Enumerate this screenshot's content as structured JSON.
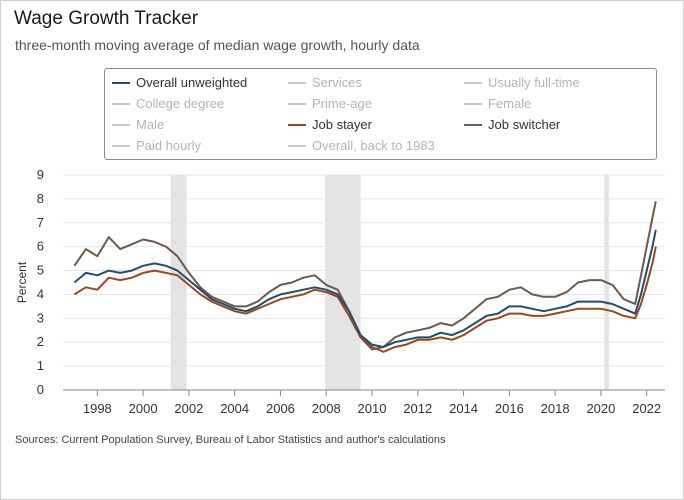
{
  "title": "Wage Growth Tracker",
  "subtitle": "three-month moving average of median wage growth, hourly data",
  "source": "Sources: Current Population Survey, Bureau of Labor Statistics and author's calculations",
  "legend": [
    {
      "label": "Overall unweighted",
      "color": "#1f4e6e",
      "active": true
    },
    {
      "label": "Services",
      "color": "#c8c8c8",
      "active": false
    },
    {
      "label": "Usually full-time",
      "color": "#c8c8c8",
      "active": false
    },
    {
      "label": "College degree",
      "color": "#c8c8c8",
      "active": false
    },
    {
      "label": "Prime-age",
      "color": "#c8c8c8",
      "active": false
    },
    {
      "label": "Female",
      "color": "#c8c8c8",
      "active": false
    },
    {
      "label": "Male",
      "color": "#c8c8c8",
      "active": false
    },
    {
      "label": "Job stayer",
      "color": "#a0461a",
      "active": true
    },
    {
      "label": "Job switcher",
      "color": "#6b5a4e",
      "active": true
    },
    {
      "label": "Paid hourly",
      "color": "#c8c8c8",
      "active": false
    },
    {
      "label": "Overall, back to 1983",
      "color": "#c8c8c8",
      "active": false
    }
  ],
  "chart_data": {
    "type": "line",
    "ylabel": "Percent",
    "xlabel": "",
    "ylim": [
      0,
      9
    ],
    "xlim": [
      1996.5,
      2022.8
    ],
    "yticks": [
      "0",
      "1",
      "2",
      "3",
      "4",
      "5",
      "6",
      "7",
      "8",
      "9"
    ],
    "xticks": [
      "1998",
      "2000",
      "2002",
      "2004",
      "2006",
      "2008",
      "2010",
      "2012",
      "2014",
      "2016",
      "2018",
      "2020",
      "2022"
    ],
    "grid": true,
    "recessions": [
      [
        2001.2,
        2001.9
      ],
      [
        2007.95,
        2009.5
      ],
      [
        2020.15,
        2020.35
      ]
    ],
    "x": [
      1997.0,
      1997.5,
      1998.0,
      1998.5,
      1999.0,
      1999.5,
      2000.0,
      2000.5,
      2001.0,
      2001.5,
      2002.0,
      2002.5,
      2003.0,
      2003.5,
      2004.0,
      2004.5,
      2005.0,
      2005.5,
      2006.0,
      2006.5,
      2007.0,
      2007.5,
      2008.0,
      2008.5,
      2009.0,
      2009.5,
      2010.0,
      2010.5,
      2011.0,
      2011.5,
      2012.0,
      2012.5,
      2013.0,
      2013.5,
      2014.0,
      2014.5,
      2015.0,
      2015.5,
      2016.0,
      2016.5,
      2017.0,
      2017.5,
      2018.0,
      2018.5,
      2019.0,
      2019.5,
      2020.0,
      2020.5,
      2021.0,
      2021.5,
      2021.75,
      2022.0,
      2022.25,
      2022.4
    ],
    "series": [
      {
        "name": "Overall unweighted",
        "color": "#1f4e6e",
        "values": [
          4.5,
          4.9,
          4.8,
          5.0,
          4.9,
          5.0,
          5.2,
          5.3,
          5.2,
          5.0,
          4.6,
          4.2,
          3.8,
          3.6,
          3.4,
          3.3,
          3.5,
          3.8,
          4.0,
          4.1,
          4.2,
          4.3,
          4.2,
          4.0,
          3.3,
          2.3,
          1.9,
          1.8,
          2.0,
          2.1,
          2.2,
          2.2,
          2.4,
          2.3,
          2.5,
          2.8,
          3.1,
          3.2,
          3.5,
          3.5,
          3.4,
          3.3,
          3.4,
          3.5,
          3.7,
          3.7,
          3.7,
          3.6,
          3.4,
          3.2,
          4.0,
          5.0,
          6.0,
          6.7
        ]
      },
      {
        "name": "Job stayer",
        "color": "#a0461a",
        "values": [
          4.0,
          4.3,
          4.2,
          4.7,
          4.6,
          4.7,
          4.9,
          5.0,
          4.9,
          4.8,
          4.4,
          4.0,
          3.7,
          3.5,
          3.3,
          3.2,
          3.4,
          3.6,
          3.8,
          3.9,
          4.0,
          4.2,
          4.1,
          3.9,
          3.1,
          2.2,
          1.8,
          1.6,
          1.8,
          1.9,
          2.1,
          2.1,
          2.2,
          2.1,
          2.3,
          2.6,
          2.9,
          3.0,
          3.2,
          3.2,
          3.1,
          3.1,
          3.2,
          3.3,
          3.4,
          3.4,
          3.4,
          3.3,
          3.1,
          3.0,
          3.6,
          4.4,
          5.3,
          6.0
        ]
      },
      {
        "name": "Job switcher",
        "color": "#6b5a4e",
        "values": [
          5.2,
          5.9,
          5.6,
          6.4,
          5.9,
          6.1,
          6.3,
          6.2,
          6.0,
          5.6,
          4.9,
          4.3,
          3.9,
          3.7,
          3.5,
          3.5,
          3.7,
          4.1,
          4.4,
          4.5,
          4.7,
          4.8,
          4.4,
          4.2,
          3.3,
          2.2,
          1.7,
          1.8,
          2.2,
          2.4,
          2.5,
          2.6,
          2.8,
          2.7,
          3.0,
          3.4,
          3.8,
          3.9,
          4.2,
          4.3,
          4.0,
          3.9,
          3.9,
          4.1,
          4.5,
          4.6,
          4.6,
          4.4,
          3.8,
          3.6,
          4.8,
          6.0,
          7.2,
          7.9
        ]
      }
    ]
  }
}
